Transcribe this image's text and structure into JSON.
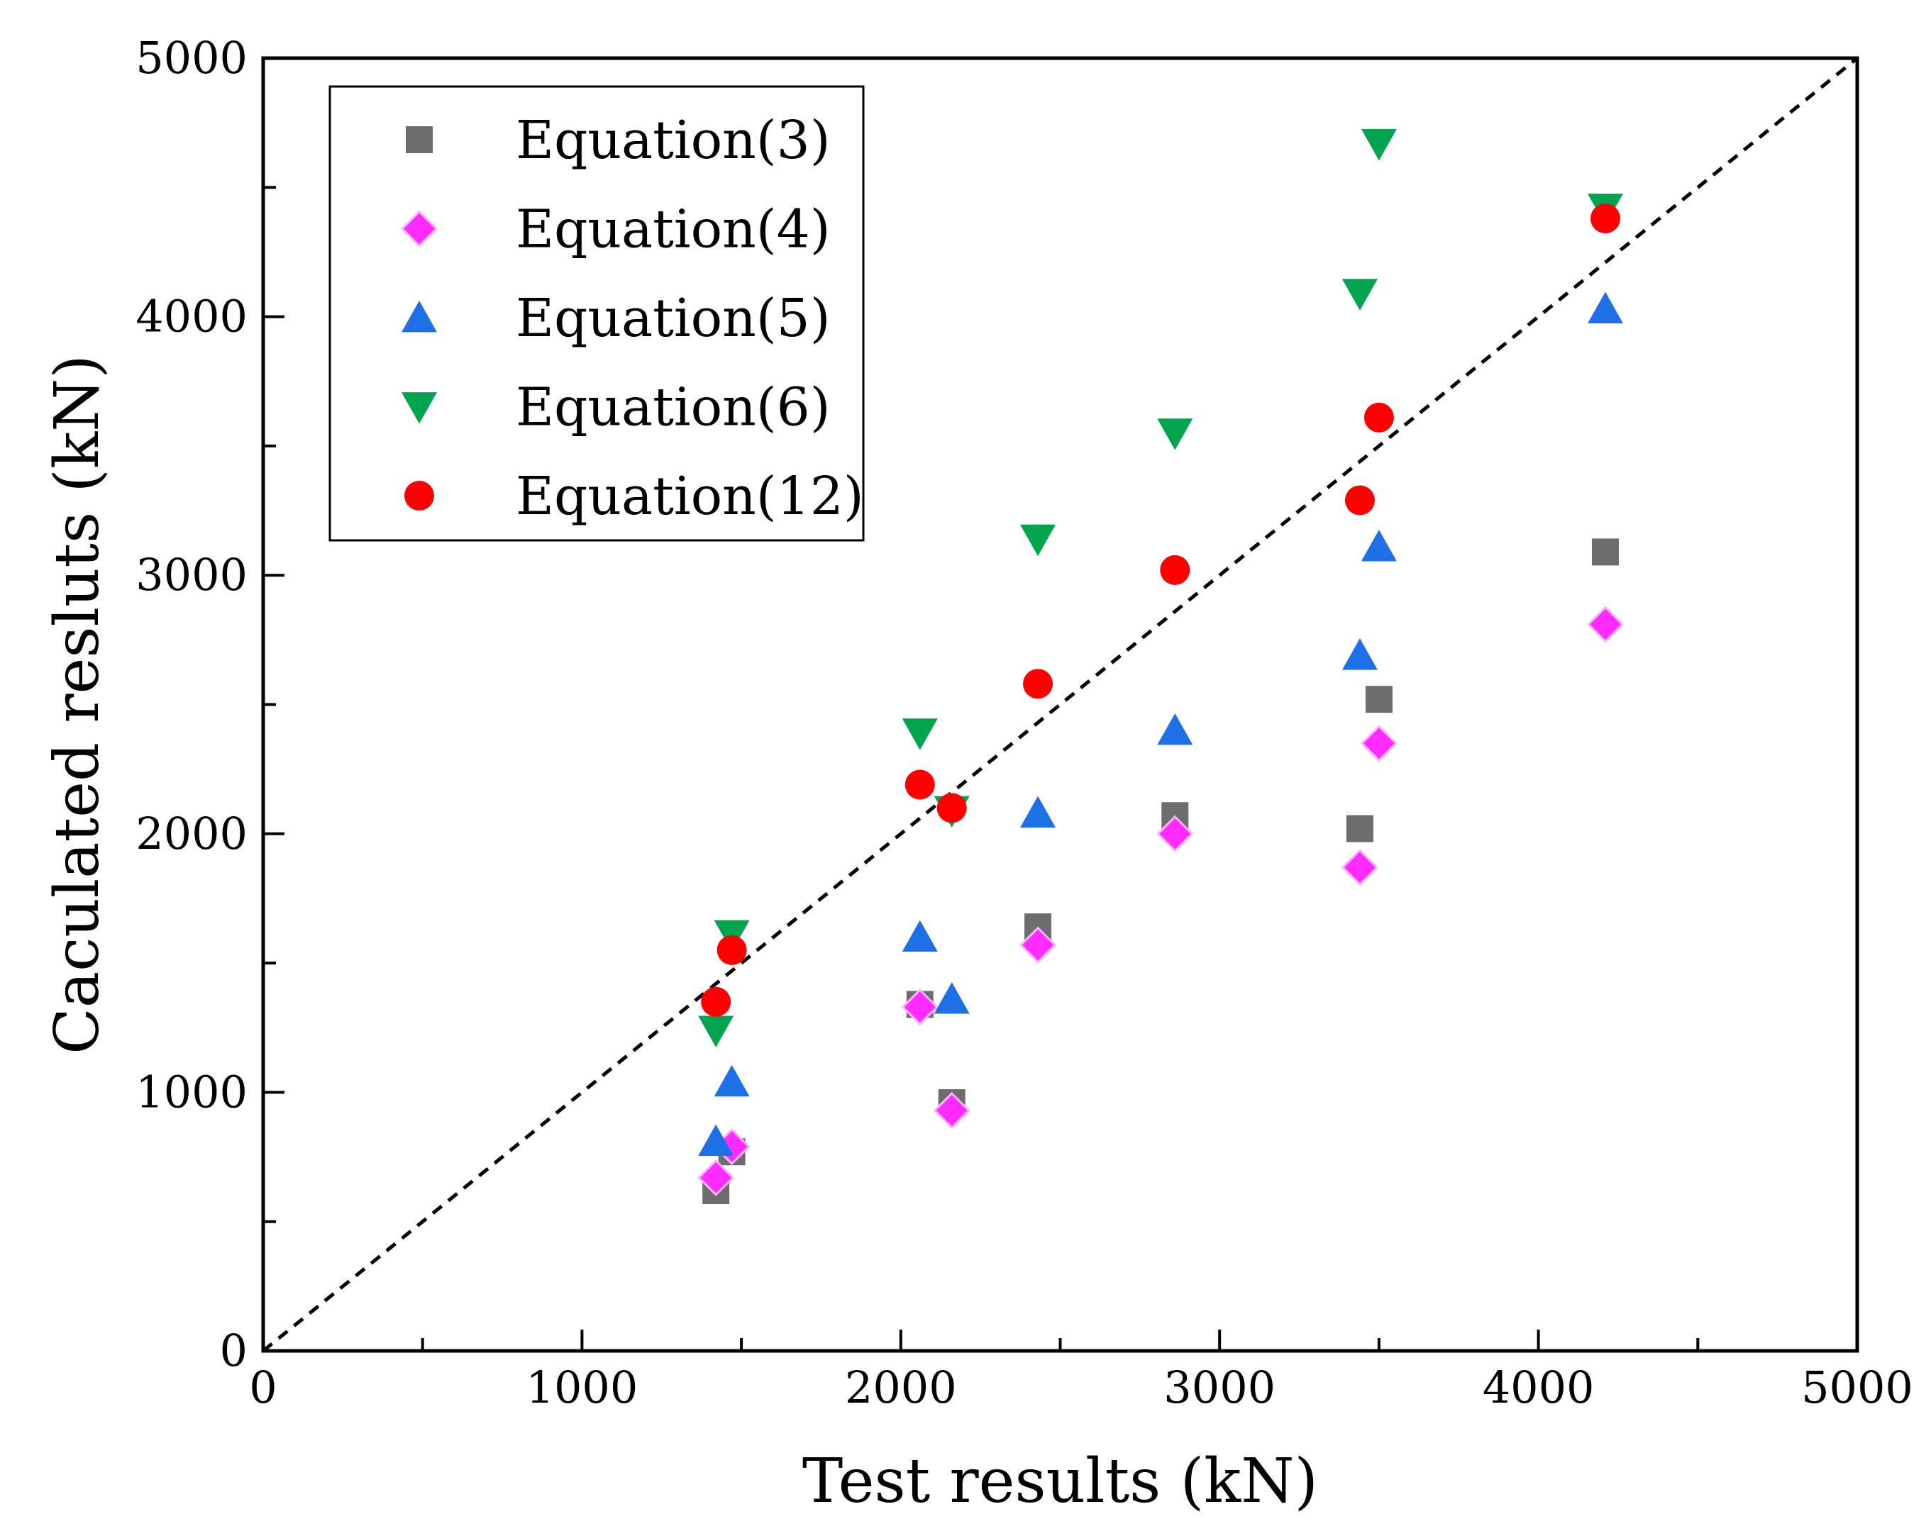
{
  "chart_data": {
    "type": "scatter",
    "title": "",
    "xlabel": "Test results (kN)",
    "ylabel": "Caculated resluts (kN)",
    "xlim": [
      0,
      5000
    ],
    "ylim": [
      0,
      5000
    ],
    "xticks": [
      0,
      1000,
      2000,
      3000,
      4000,
      5000
    ],
    "yticks": [
      0,
      1000,
      2000,
      3000,
      4000,
      5000
    ],
    "xtick_labels": [
      "0",
      "1000",
      "2000",
      "3000",
      "4000",
      "5000"
    ],
    "ytick_labels": [
      "0",
      "1000",
      "2000",
      "3000",
      "4000",
      "5000"
    ],
    "minor_tick_step": 500,
    "grid": false,
    "legend_position": "top-left",
    "reference_line": {
      "style": "dashed",
      "from": [
        0,
        0
      ],
      "to": [
        5000,
        5000
      ],
      "color": "#000000"
    },
    "series": [
      {
        "name": "Equation(3)",
        "marker": "square",
        "color": "#6d6d6d",
        "x": [
          1420,
          1470,
          2060,
          2160,
          2430,
          2860,
          3440,
          3500,
          4210
        ],
        "y": [
          620,
          770,
          1340,
          960,
          1640,
          2070,
          2020,
          2520,
          3090
        ]
      },
      {
        "name": "Equation(4)",
        "marker": "diamond",
        "color": "#ff2bff",
        "x": [
          1420,
          1470,
          2060,
          2160,
          2430,
          2860,
          3440,
          3500,
          4210
        ],
        "y": [
          670,
          790,
          1330,
          930,
          1570,
          2000,
          1870,
          2350,
          2810
        ]
      },
      {
        "name": "Equation(5)",
        "marker": "triangle-up",
        "color": "#1f6fe6",
        "x": [
          1420,
          1470,
          2060,
          2160,
          2430,
          2860,
          3440,
          3500,
          4210
        ],
        "y": [
          810,
          1040,
          1600,
          1360,
          2080,
          2400,
          2690,
          3110,
          4030
        ]
      },
      {
        "name": "Equation(6)",
        "marker": "triangle-down",
        "color": "#00a44f",
        "x": [
          1420,
          1470,
          2060,
          2160,
          2430,
          2860,
          3440,
          3500,
          4210
        ],
        "y": [
          1240,
          1610,
          2390,
          2090,
          3140,
          3550,
          4090,
          4670,
          4420
        ]
      },
      {
        "name": "Equation(12)",
        "marker": "circle",
        "color": "#ff0000",
        "x": [
          1420,
          1470,
          2060,
          2160,
          2430,
          2860,
          3440,
          3500,
          4210
        ],
        "y": [
          1350,
          1550,
          2190,
          2100,
          2580,
          3020,
          3290,
          3610,
          4380
        ]
      }
    ]
  }
}
